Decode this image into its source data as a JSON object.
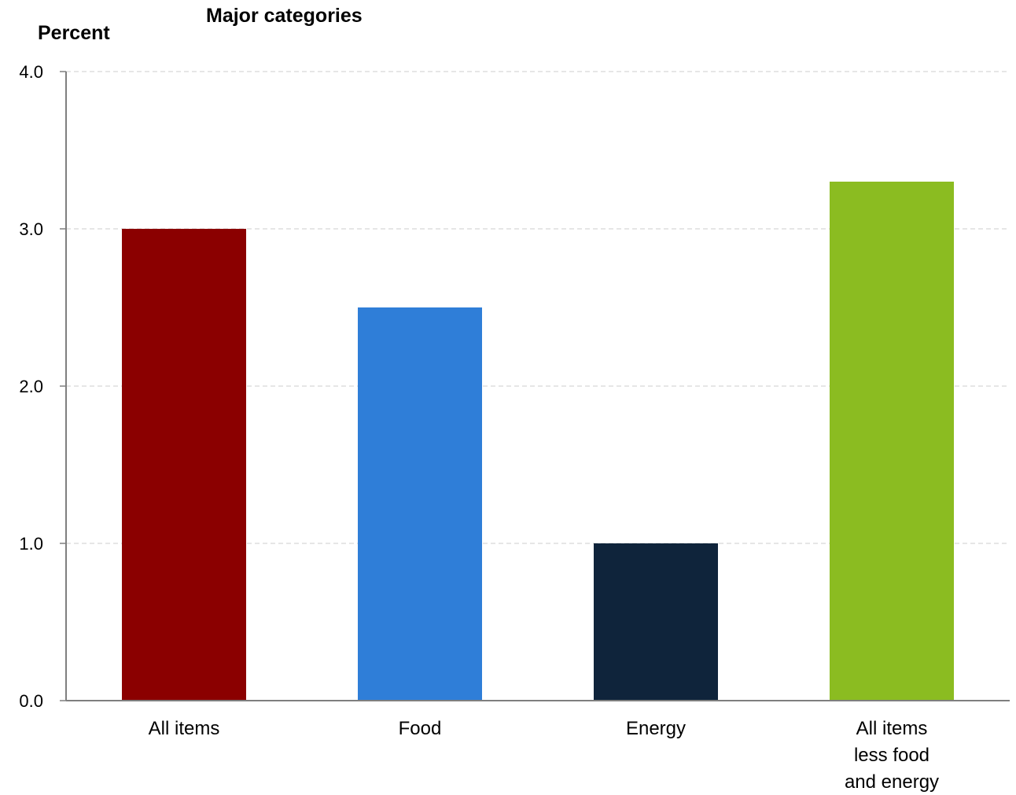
{
  "chart_data": {
    "type": "bar",
    "title": "Major categories",
    "ylabel": "Percent",
    "xlabel": "",
    "categories": [
      [
        "All items"
      ],
      [
        "Food"
      ],
      [
        "Energy"
      ],
      [
        "All items",
        "less food",
        "and energy"
      ]
    ],
    "values": [
      3.0,
      2.5,
      1.0,
      3.3
    ],
    "colors": [
      "#8b0000",
      "#2f7ed8",
      "#0f243b",
      "#8bbc21"
    ],
    "ylim": [
      0,
      4
    ],
    "yticks": [
      "0.0",
      "1.0",
      "2.0",
      "3.0",
      "4.0"
    ],
    "grid": true,
    "grid_style": "dashed",
    "legend": "none"
  }
}
